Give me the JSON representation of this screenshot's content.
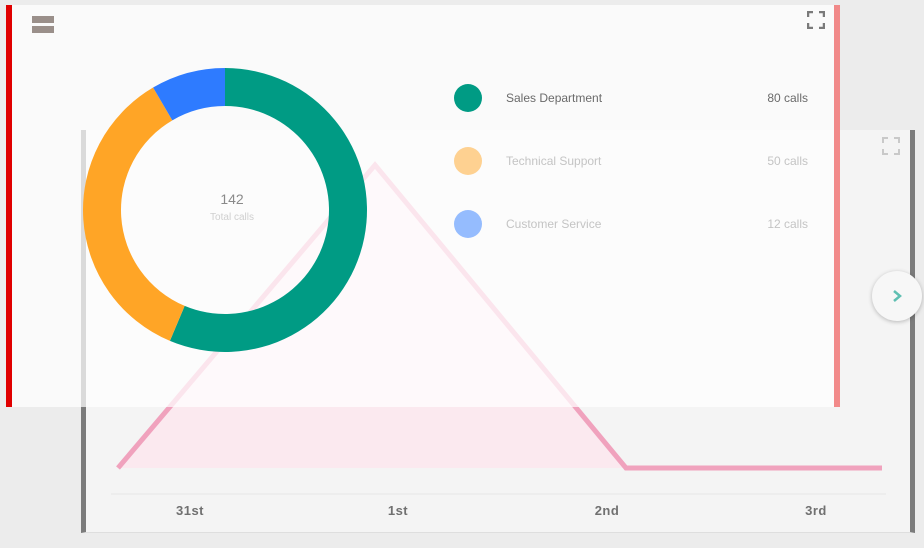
{
  "line_card": {
    "menu_icon": "menu-icon",
    "expand_icon": "expand-icon",
    "line_color": "#f0a2bd",
    "fill_color": "#fbe9ef"
  },
  "donut_card": {
    "menu_icon": "menu-icon",
    "expand_icon": "expand-icon",
    "total_value": "142",
    "total_caption": "Total calls",
    "items": [
      {
        "label": "Sales Department",
        "value": "80 calls",
        "color": "#009b84"
      },
      {
        "label": "Technical Support",
        "value": "50 calls",
        "color": "#ffa526"
      },
      {
        "label": "Customer Service",
        "value": "12 calls",
        "color": "#2e7bff"
      }
    ]
  },
  "next_button": {
    "icon": "chevron-right-icon",
    "color": "#5fbfb2"
  },
  "chart_data": [
    {
      "type": "pie",
      "categories": [
        "Sales Department",
        "Technical Support",
        "Customer Service"
      ],
      "values": [
        80,
        50,
        12
      ],
      "title": "",
      "xlabel": "",
      "ylabel": ""
    },
    {
      "type": "area",
      "categories": [
        "31st",
        "1st",
        "2nd",
        "3rd"
      ],
      "x": [
        "",
        "31st",
        "1st",
        "2nd",
        "3rd",
        ""
      ],
      "values": [
        0,
        80,
        0,
        0
      ],
      "title": "",
      "xlabel": "",
      "ylabel": "",
      "grid": false
    }
  ]
}
